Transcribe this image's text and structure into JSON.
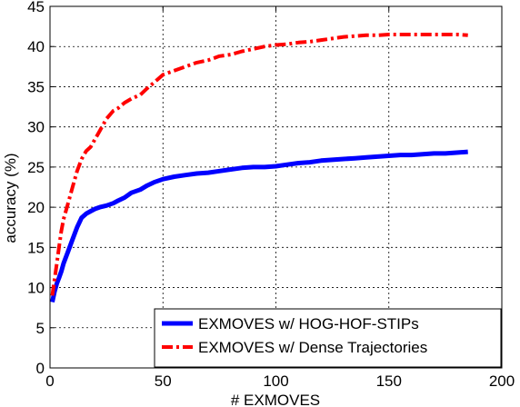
{
  "chart_data": {
    "type": "line",
    "xlabel": "# EXMOVES",
    "ylabel": "accuracy (%)",
    "xlim": [
      0,
      200
    ],
    "ylim": [
      0,
      45
    ],
    "xticks": [
      0,
      50,
      100,
      150,
      200
    ],
    "yticks": [
      0,
      5,
      10,
      15,
      20,
      25,
      30,
      35,
      40,
      45
    ],
    "grid": true,
    "legend_position": "bottom-right",
    "series": [
      {
        "name": "EXMOVES w/ HOG-HOF-STIPs",
        "color": "#0000ff",
        "style": "solid",
        "x": [
          1,
          2,
          3,
          4,
          5,
          6,
          8,
          10,
          12,
          14,
          16,
          18,
          20,
          22,
          25,
          28,
          30,
          33,
          36,
          40,
          43,
          46,
          50,
          55,
          60,
          65,
          70,
          75,
          80,
          85,
          90,
          95,
          100,
          105,
          110,
          115,
          120,
          125,
          130,
          135,
          140,
          145,
          150,
          155,
          160,
          165,
          170,
          175,
          180,
          185
        ],
        "y": [
          8.2,
          9.5,
          10.5,
          11.2,
          12.0,
          13.0,
          14.5,
          16.0,
          17.5,
          18.7,
          19.2,
          19.5,
          19.8,
          20.0,
          20.2,
          20.5,
          20.8,
          21.2,
          21.8,
          22.2,
          22.7,
          23.1,
          23.5,
          23.8,
          24.0,
          24.2,
          24.3,
          24.5,
          24.7,
          24.9,
          25.0,
          25.0,
          25.1,
          25.3,
          25.5,
          25.6,
          25.8,
          25.9,
          26.0,
          26.1,
          26.2,
          26.3,
          26.4,
          26.5,
          26.5,
          26.6,
          26.7,
          26.7,
          26.8,
          26.9
        ]
      },
      {
        "name": "EXMOVES w/ Dense Trajectories",
        "color": "#ff0000",
        "style": "dashdot",
        "x": [
          1,
          2,
          3,
          4,
          5,
          6,
          8,
          10,
          12,
          14,
          16,
          18,
          20,
          22,
          25,
          28,
          30,
          33,
          36,
          40,
          43,
          46,
          50,
          55,
          60,
          65,
          70,
          75,
          80,
          85,
          90,
          95,
          100,
          105,
          110,
          115,
          120,
          125,
          130,
          135,
          140,
          145,
          150,
          155,
          160,
          165,
          170,
          175,
          180,
          185
        ],
        "y": [
          9.0,
          11.0,
          13.0,
          15.0,
          17.0,
          18.5,
          20.5,
          22.5,
          24.5,
          26.0,
          27.0,
          27.5,
          28.5,
          29.5,
          31.0,
          32.0,
          32.3,
          33.0,
          33.5,
          34.0,
          34.8,
          35.5,
          36.5,
          37.0,
          37.5,
          38.0,
          38.3,
          38.8,
          39.0,
          39.4,
          39.7,
          40.0,
          40.2,
          40.3,
          40.5,
          40.6,
          40.8,
          41.0,
          41.2,
          41.3,
          41.4,
          41.4,
          41.5,
          41.5,
          41.5,
          41.5,
          41.5,
          41.5,
          41.5,
          41.4
        ]
      }
    ]
  }
}
